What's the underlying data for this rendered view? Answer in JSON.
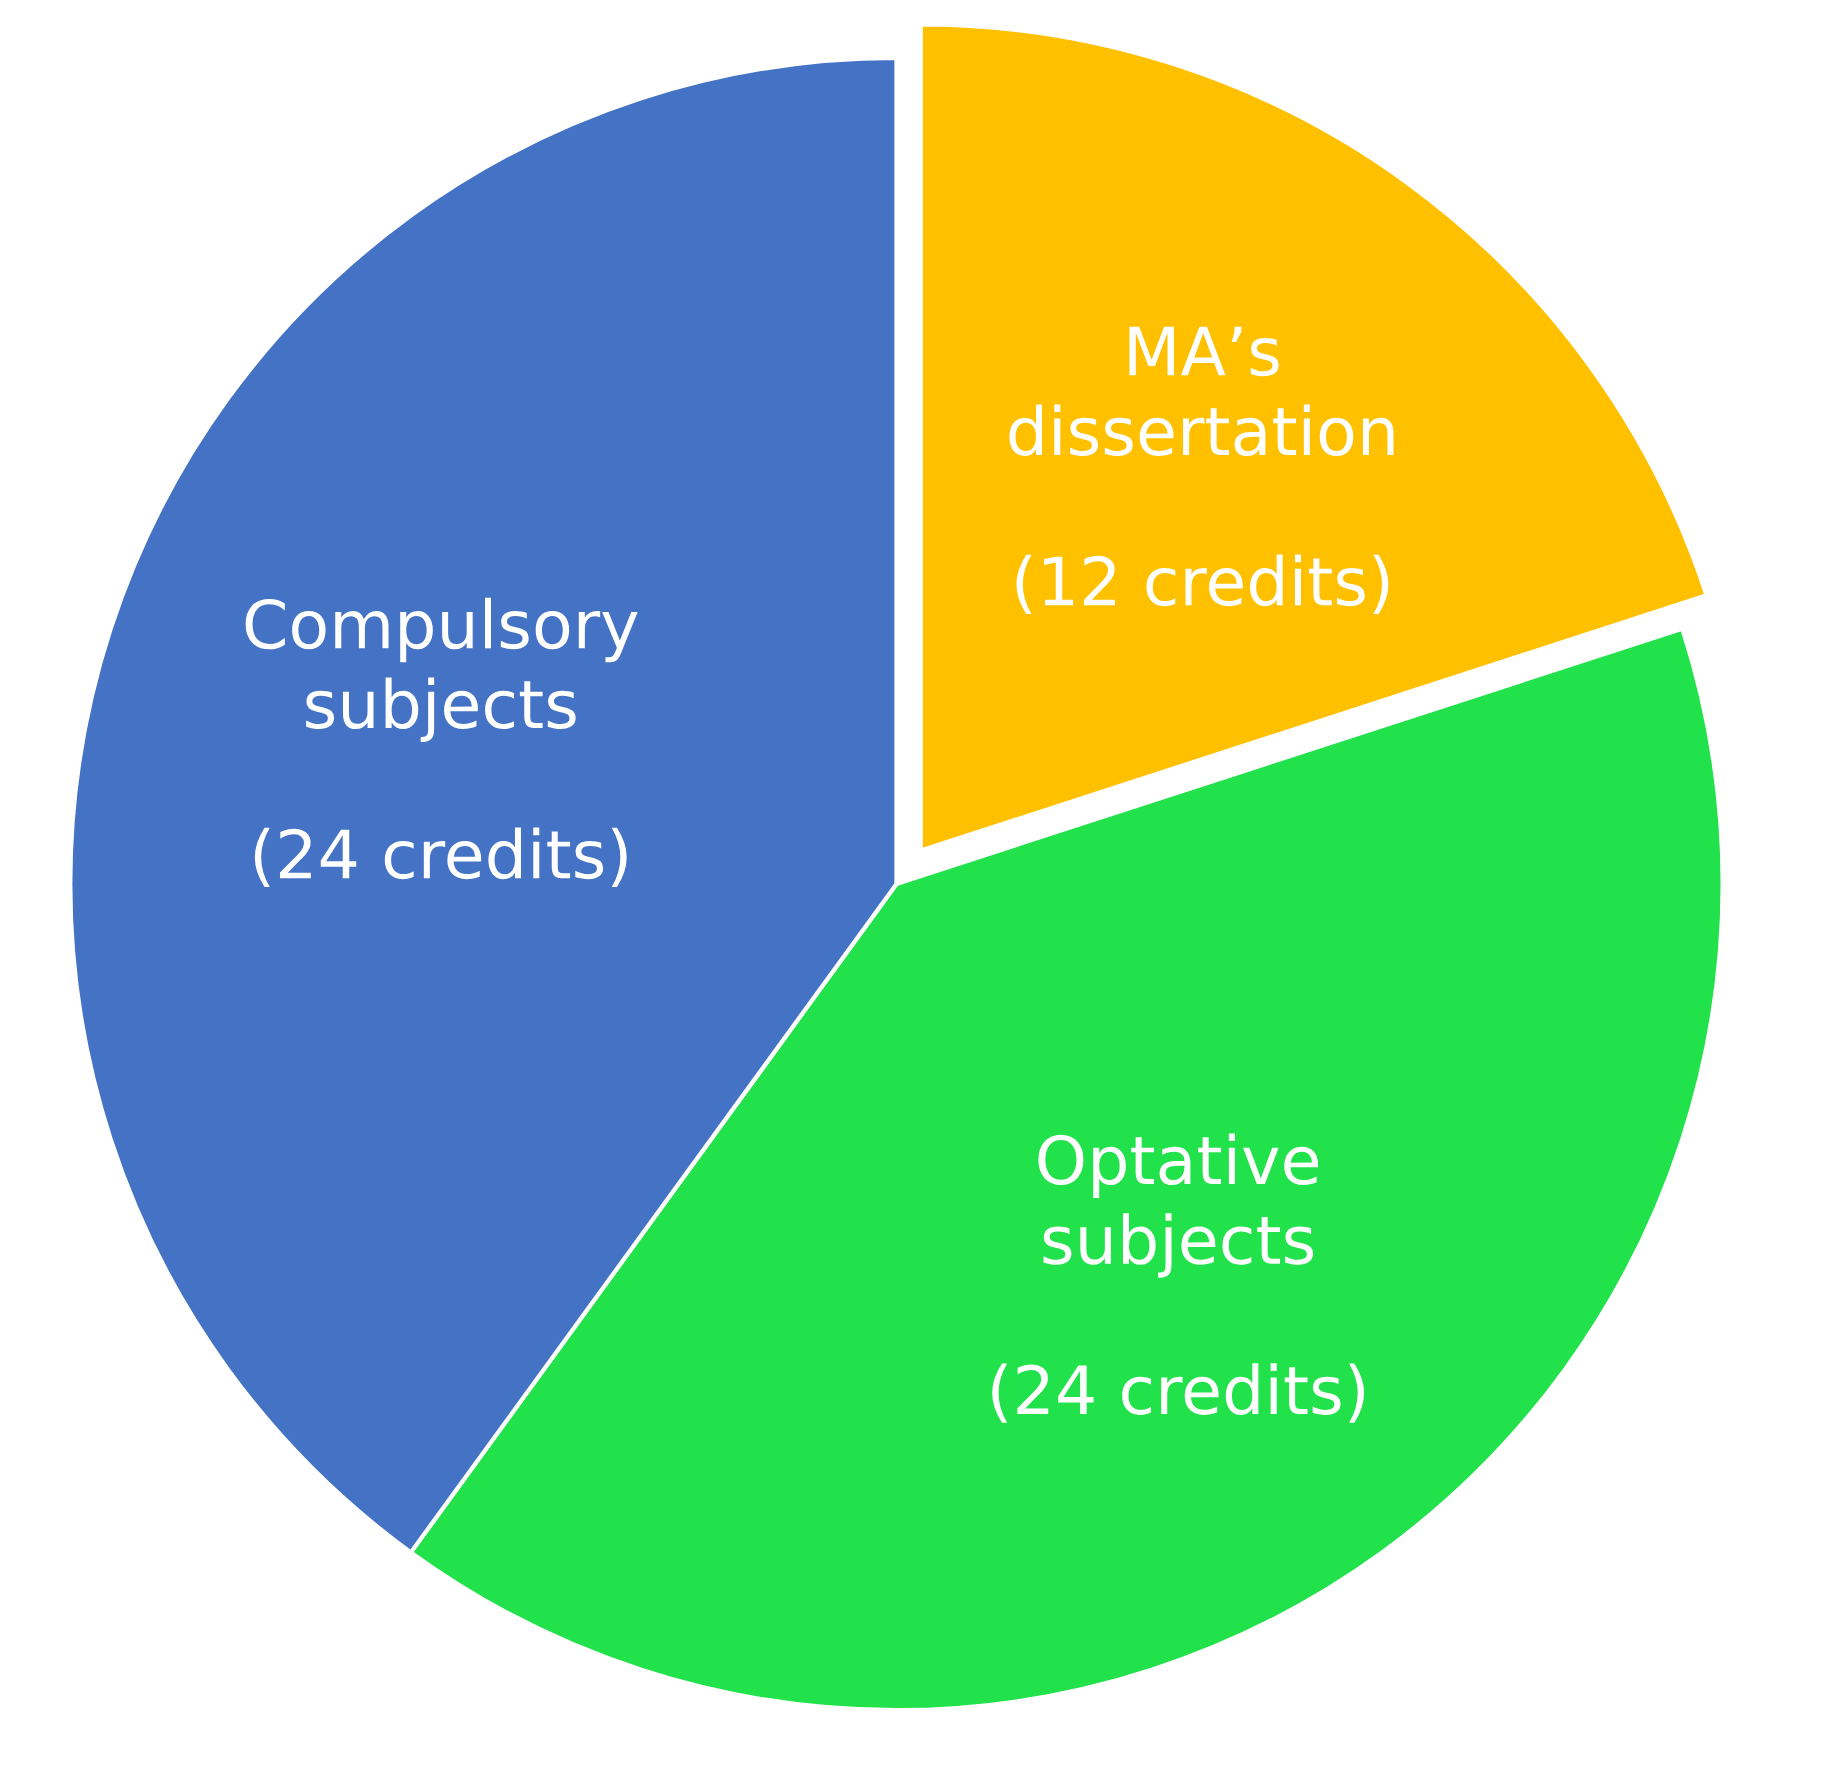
{
  "chart_data": {
    "type": "pie",
    "categories": [
      "MA’s dissertation",
      "Optative subjects",
      "Compulsory subjects"
    ],
    "values": [
      12,
      24,
      24
    ],
    "colors": [
      "#ffc000",
      "#22e24c",
      "#4472c4"
    ],
    "value_labels": [
      "(12 credits)",
      "(24 credits)",
      "(24 credits)"
    ],
    "legend": false
  }
}
